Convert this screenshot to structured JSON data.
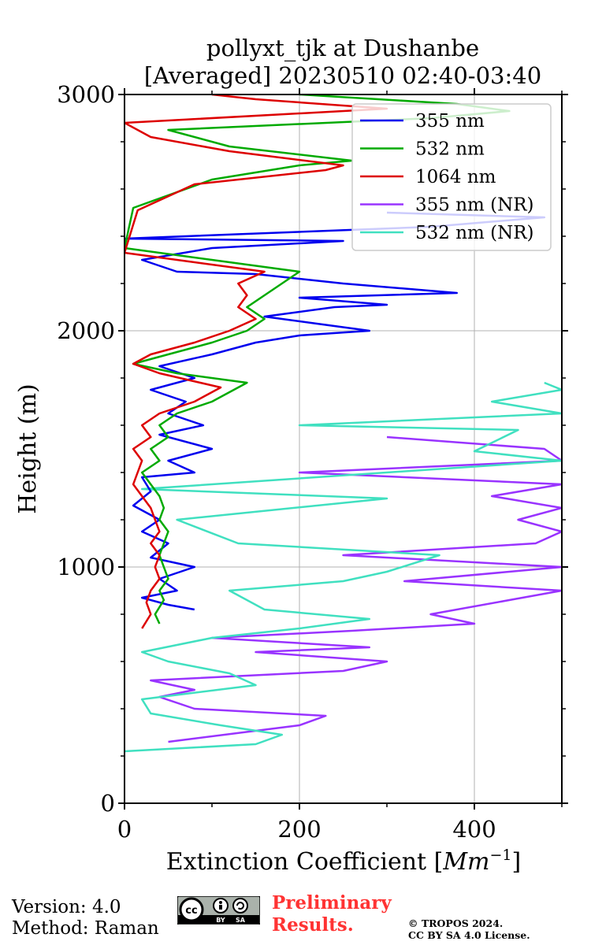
{
  "chart_data": {
    "type": "line",
    "title": "pollyxt_tjk at Dushanbe",
    "subtitle": "[Averaged] 20230510 02:40-03:40",
    "xlabel": "Extinction Coefficient [$Mm^{-1}$]",
    "xlabel_text": "Extinction Coefficient [",
    "xlabel_unit": "Mm",
    "xlabel_exp": "−1",
    "xlabel_close": "]",
    "ylabel": "Height (m)",
    "xlim": [
      0,
      500
    ],
    "ylim": [
      0,
      3000
    ],
    "xticks": [
      0,
      200,
      400
    ],
    "yticks": [
      0,
      1000,
      2000,
      3000
    ],
    "xtick_labels": [
      "0",
      "200",
      "400"
    ],
    "ytick_labels": [
      "0",
      "1000",
      "2000",
      "3000"
    ],
    "grid": true,
    "legend_position": "top-right",
    "series": [
      {
        "name": "355 nm",
        "color": "#0000ee",
        "points": [
          [
            80,
            820
          ],
          [
            50,
            840
          ],
          [
            20,
            870
          ],
          [
            60,
            900
          ],
          [
            40,
            950
          ],
          [
            80,
            1000
          ],
          [
            30,
            1040
          ],
          [
            50,
            1100
          ],
          [
            20,
            1150
          ],
          [
            40,
            1200
          ],
          [
            10,
            1260
          ],
          [
            30,
            1320
          ],
          [
            20,
            1380
          ],
          [
            80,
            1400
          ],
          [
            50,
            1450
          ],
          [
            100,
            1500
          ],
          [
            40,
            1560
          ],
          [
            90,
            1600
          ],
          [
            50,
            1650
          ],
          [
            70,
            1700
          ],
          [
            30,
            1750
          ],
          [
            80,
            1800
          ],
          [
            40,
            1850
          ],
          [
            100,
            1900
          ],
          [
            150,
            1950
          ],
          [
            200,
            1980
          ],
          [
            280,
            2000
          ],
          [
            220,
            2030
          ],
          [
            160,
            2060
          ],
          [
            240,
            2100
          ],
          [
            300,
            2110
          ],
          [
            200,
            2140
          ],
          [
            380,
            2160
          ],
          [
            250,
            2200
          ],
          [
            150,
            2240
          ],
          [
            60,
            2250
          ],
          [
            20,
            2300
          ],
          [
            100,
            2350
          ],
          [
            250,
            2380
          ],
          [
            0,
            2390
          ],
          [
            350,
            2440
          ],
          [
            480,
            2480
          ],
          [
            300,
            2500
          ]
        ]
      },
      {
        "name": "532 nm",
        "color": "#00aa00",
        "points": [
          [
            40,
            760
          ],
          [
            35,
            800
          ],
          [
            45,
            860
          ],
          [
            40,
            900
          ],
          [
            50,
            950
          ],
          [
            45,
            1000
          ],
          [
            40,
            1050
          ],
          [
            45,
            1100
          ],
          [
            50,
            1150
          ],
          [
            40,
            1200
          ],
          [
            45,
            1250
          ],
          [
            40,
            1300
          ],
          [
            30,
            1350
          ],
          [
            20,
            1400
          ],
          [
            40,
            1450
          ],
          [
            30,
            1500
          ],
          [
            50,
            1550
          ],
          [
            40,
            1600
          ],
          [
            60,
            1650
          ],
          [
            100,
            1700
          ],
          [
            140,
            1780
          ],
          [
            60,
            1820
          ],
          [
            10,
            1860
          ],
          [
            50,
            1900
          ],
          [
            100,
            1950
          ],
          [
            140,
            2000
          ],
          [
            160,
            2050
          ],
          [
            140,
            2100
          ],
          [
            160,
            2150
          ],
          [
            180,
            2200
          ],
          [
            200,
            2250
          ],
          [
            100,
            2300
          ],
          [
            0,
            2350
          ],
          [
            10,
            2520
          ],
          [
            100,
            2640
          ],
          [
            200,
            2700
          ],
          [
            260,
            2720
          ],
          [
            120,
            2780
          ],
          [
            50,
            2850
          ],
          [
            350,
            2900
          ],
          [
            440,
            2930
          ],
          [
            380,
            2960
          ],
          [
            200,
            3000
          ]
        ]
      },
      {
        "name": "1064 nm",
        "color": "#dd0000",
        "points": [
          [
            20,
            740
          ],
          [
            30,
            800
          ],
          [
            25,
            850
          ],
          [
            30,
            900
          ],
          [
            40,
            950
          ],
          [
            35,
            1000
          ],
          [
            40,
            1050
          ],
          [
            30,
            1100
          ],
          [
            40,
            1150
          ],
          [
            35,
            1200
          ],
          [
            30,
            1250
          ],
          [
            20,
            1300
          ],
          [
            10,
            1350
          ],
          [
            20,
            1450
          ],
          [
            10,
            1500
          ],
          [
            30,
            1550
          ],
          [
            20,
            1600
          ],
          [
            40,
            1650
          ],
          [
            80,
            1700
          ],
          [
            110,
            1760
          ],
          [
            40,
            1820
          ],
          [
            10,
            1860
          ],
          [
            30,
            1900
          ],
          [
            80,
            1950
          ],
          [
            120,
            2000
          ],
          [
            150,
            2050
          ],
          [
            130,
            2100
          ],
          [
            140,
            2150
          ],
          [
            130,
            2200
          ],
          [
            160,
            2250
          ],
          [
            60,
            2300
          ],
          [
            0,
            2330
          ],
          [
            15,
            2510
          ],
          [
            80,
            2620
          ],
          [
            230,
            2680
          ],
          [
            250,
            2700
          ],
          [
            120,
            2760
          ],
          [
            30,
            2820
          ],
          [
            0,
            2880
          ],
          [
            300,
            2940
          ],
          [
            150,
            2980
          ],
          [
            100,
            3000
          ]
        ]
      },
      {
        "name": "355 nm (NR)",
        "color": "#9933ff",
        "points": [
          [
            50,
            260
          ],
          [
            200,
            330
          ],
          [
            230,
            370
          ],
          [
            80,
            400
          ],
          [
            40,
            450
          ],
          [
            80,
            480
          ],
          [
            30,
            520
          ],
          [
            250,
            560
          ],
          [
            300,
            600
          ],
          [
            150,
            640
          ],
          [
            280,
            660
          ],
          [
            100,
            700
          ],
          [
            260,
            730
          ],
          [
            400,
            760
          ],
          [
            350,
            800
          ],
          [
            500,
            900
          ],
          [
            320,
            940
          ],
          [
            500,
            1000
          ],
          [
            250,
            1050
          ],
          [
            470,
            1100
          ],
          [
            500,
            1150
          ],
          [
            450,
            1200
          ],
          [
            500,
            1250
          ],
          [
            420,
            1300
          ],
          [
            500,
            1350
          ],
          [
            200,
            1400
          ],
          [
            500,
            1450
          ],
          [
            480,
            1500
          ],
          [
            300,
            1550
          ]
        ]
      },
      {
        "name": "532 nm (NR)",
        "color": "#40e0c0",
        "points": [
          [
            0,
            220
          ],
          [
            150,
            250
          ],
          [
            180,
            290
          ],
          [
            110,
            330
          ],
          [
            30,
            380
          ],
          [
            20,
            440
          ],
          [
            150,
            500
          ],
          [
            120,
            550
          ],
          [
            50,
            600
          ],
          [
            20,
            640
          ],
          [
            100,
            700
          ],
          [
            200,
            740
          ],
          [
            280,
            780
          ],
          [
            160,
            820
          ],
          [
            120,
            900
          ],
          [
            250,
            940
          ],
          [
            300,
            980
          ],
          [
            360,
            1050
          ],
          [
            130,
            1100
          ],
          [
            60,
            1200
          ],
          [
            300,
            1290
          ],
          [
            20,
            1330
          ],
          [
            500,
            1450
          ],
          [
            400,
            1490
          ],
          [
            450,
            1580
          ],
          [
            200,
            1600
          ],
          [
            500,
            1650
          ],
          [
            420,
            1700
          ],
          [
            500,
            1750
          ],
          [
            480,
            1780
          ]
        ]
      }
    ]
  },
  "footer": {
    "version": "Version: 4.0",
    "method": "Method: Raman",
    "preliminary_line1": "Preliminary",
    "preliminary_line2": "Results.",
    "copyright_line1": "© TROPOS 2024.",
    "copyright_line2": "CC BY SA 4.0 License.",
    "cc_text": "cc",
    "by_text": "BY",
    "sa_text": "SA"
  }
}
